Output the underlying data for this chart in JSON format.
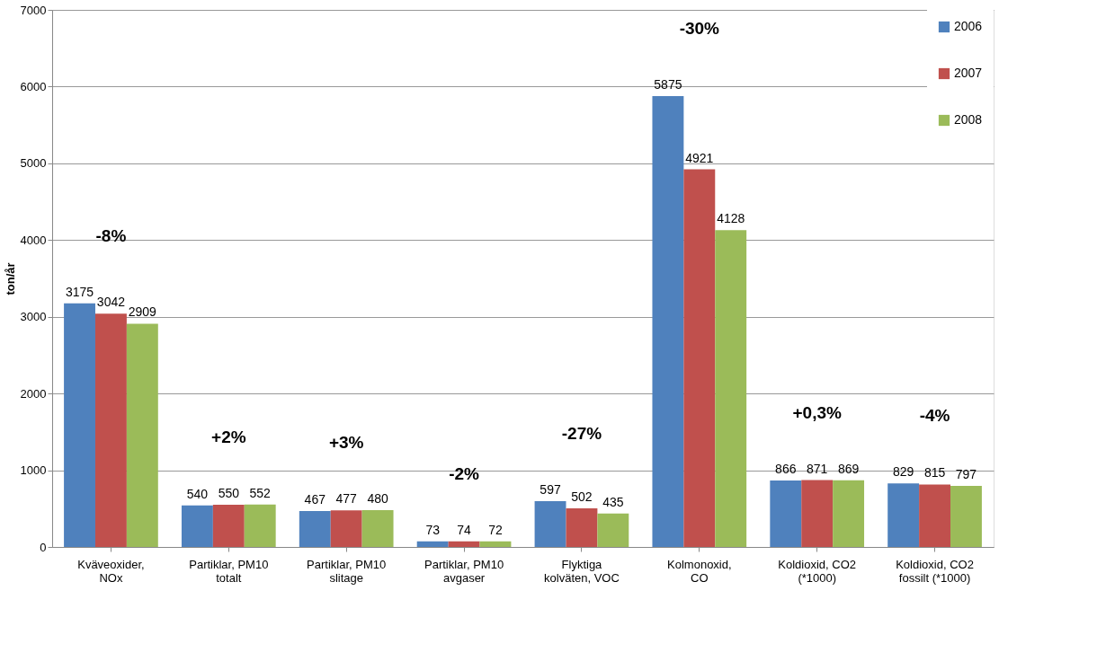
{
  "chart_data": {
    "type": "bar",
    "ylabel": "ton/år",
    "categories": [
      "Kväveoxider,\nNOx",
      "Partiklar, PM10\ntotalt",
      "Partiklar, PM10\nslitage",
      "Partiklar, PM10\navgaser",
      "Flyktiga\nkolväten, VOC",
      "Kolmonoxid,\nCO",
      "Koldioxid, CO2\n(*1000)",
      "Koldioxid, CO2\nfossilt  (*1000)"
    ],
    "series": [
      {
        "name": "2006",
        "color": "#4f81bd",
        "values": [
          3175,
          540,
          467,
          73,
          597,
          5875,
          866,
          829
        ]
      },
      {
        "name": "2007",
        "color": "#c0504d",
        "values": [
          3042,
          550,
          477,
          74,
          502,
          4921,
          871,
          815
        ]
      },
      {
        "name": "2008",
        "color": "#9bbb59",
        "values": [
          2909,
          552,
          480,
          72,
          435,
          4128,
          869,
          797
        ]
      }
    ],
    "ylim": [
      0,
      7000
    ],
    "yticks": [
      0,
      1000,
      2000,
      3000,
      4000,
      5000,
      6000,
      7000
    ],
    "grid": "y",
    "legend": "top right",
    "data_labels": true,
    "annotations": [
      "-8%",
      "+2%",
      "+3%",
      "-2%",
      "-27%",
      "-30%",
      "+0,3%",
      "-4%"
    ]
  }
}
